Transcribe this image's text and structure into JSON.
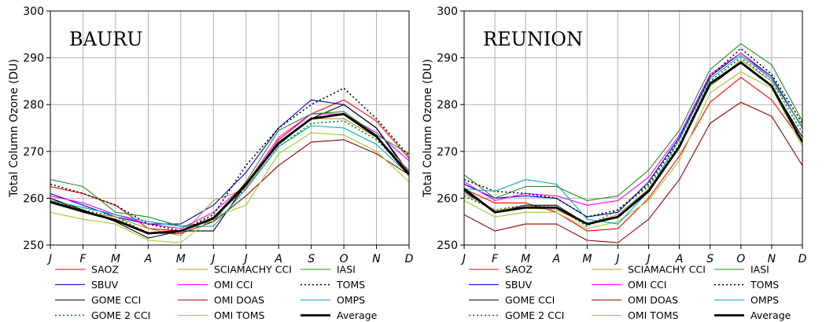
{
  "chart_data": [
    {
      "type": "line",
      "title": "BAURU",
      "ylabel": "Total Column Ozone (DU)",
      "xlabel": "",
      "categories": [
        "J",
        "F",
        "M",
        "A",
        "M",
        "J",
        "J",
        "A",
        "S",
        "O",
        "N",
        "D"
      ],
      "ylim": [
        250,
        300
      ],
      "yticks": [
        250,
        260,
        270,
        280,
        290,
        300
      ],
      "grid": true,
      "series": [
        {
          "name": "SAOZ",
          "color": "#ff0000",
          "style": "solid",
          "values": [
            262.5,
            261.0,
            258.5,
            253.5,
            253.0,
            255.5,
            262.5,
            272.5,
            278.0,
            281.0,
            276.5,
            268.5
          ]
        },
        {
          "name": "SBUV",
          "color": "#0000cc",
          "style": "solid",
          "values": [
            261.0,
            258.5,
            256.0,
            254.5,
            254.5,
            258.5,
            265.5,
            275.0,
            281.0,
            280.0,
            275.0,
            265.5
          ]
        },
        {
          "name": "GOME CCI",
          "color": "#000000",
          "style": "solid",
          "values": [
            260.0,
            257.5,
            255.0,
            251.5,
            253.0,
            253.0,
            263.0,
            271.5,
            277.0,
            280.0,
            275.0,
            265.0
          ]
        },
        {
          "name": "GOME 2 CCI",
          "color": "#007a00",
          "style": "dotted",
          "values": [
            259.5,
            257.5,
            256.0,
            252.5,
            253.0,
            256.0,
            262.0,
            271.0,
            276.0,
            276.5,
            272.5,
            265.5
          ]
        },
        {
          "name": "SCIAMACHY CCI",
          "color": "#b59a3a",
          "style": "solid",
          "values": [
            259.0,
            257.0,
            256.0,
            253.5,
            252.0,
            259.5,
            262.0,
            272.0,
            277.0,
            277.0,
            273.0,
            266.0
          ]
        },
        {
          "name": "OMI CCI",
          "color": "#ff00ff",
          "style": "solid",
          "values": [
            260.5,
            259.0,
            256.5,
            254.5,
            253.5,
            257.0,
            263.0,
            273.0,
            278.0,
            278.0,
            274.0,
            268.0
          ]
        },
        {
          "name": "OMI DOAS",
          "color": "#8b0000",
          "style": "solid",
          "values": [
            260.0,
            257.0,
            255.5,
            252.5,
            252.5,
            255.0,
            260.5,
            267.0,
            272.0,
            272.5,
            269.5,
            265.0
          ]
        },
        {
          "name": "OMI TOMS",
          "color": "#99cc33",
          "style": "solid",
          "values": [
            257.0,
            255.5,
            254.5,
            251.0,
            250.5,
            256.0,
            258.5,
            269.5,
            274.0,
            273.5,
            270.0,
            263.5
          ]
        },
        {
          "name": "IASI",
          "color": "#228b22",
          "style": "solid",
          "values": [
            264.0,
            262.5,
            257.0,
            256.0,
            254.0,
            255.0,
            263.5,
            274.5,
            278.0,
            278.5,
            273.5,
            269.5
          ]
        },
        {
          "name": "TOMS",
          "color": "#000000",
          "style": "dotted",
          "values": [
            263.0,
            261.0,
            258.5,
            254.5,
            253.0,
            256.5,
            267.0,
            275.0,
            280.0,
            283.5,
            277.0,
            269.0
          ]
        },
        {
          "name": "OMPS",
          "color": "#00aaaa",
          "style": "solid",
          "values": [
            259.5,
            258.0,
            256.5,
            255.0,
            254.0,
            254.0,
            262.0,
            271.0,
            275.5,
            275.0,
            271.5,
            265.0
          ]
        },
        {
          "name": "Average",
          "color": "#000000",
          "style": "bold",
          "values": [
            259.2,
            257.2,
            255.3,
            252.5,
            253.0,
            255.7,
            263.0,
            271.8,
            277.0,
            278.0,
            273.2,
            265.0
          ]
        }
      ]
    },
    {
      "type": "line",
      "title": "REUNION",
      "ylabel": "Total Column Ozone (DU)",
      "xlabel": "",
      "categories": [
        "J",
        "F",
        "M",
        "A",
        "M",
        "J",
        "J",
        "A",
        "S",
        "O",
        "N",
        "D"
      ],
      "ylim": [
        250,
        300
      ],
      "yticks": [
        250,
        260,
        270,
        280,
        290,
        300
      ],
      "grid": true,
      "series": [
        {
          "name": "SAOZ",
          "color": "#ff0000",
          "style": "solid",
          "values": [
            262.0,
            259.0,
            259.0,
            257.0,
            253.0,
            253.5,
            260.0,
            269.0,
            280.5,
            285.8,
            281.0,
            272.0
          ]
        },
        {
          "name": "SBUV",
          "color": "#0000cc",
          "style": "solid",
          "values": [
            263.0,
            260.0,
            260.5,
            260.0,
            256.0,
            257.0,
            263.5,
            273.0,
            286.0,
            291.0,
            286.0,
            275.0
          ]
        },
        {
          "name": "GOME CCI",
          "color": "#000000",
          "style": "solid",
          "values": [
            261.5,
            257.0,
            258.5,
            258.5,
            254.5,
            256.0,
            262.0,
            271.0,
            284.0,
            289.0,
            284.0,
            273.0
          ]
        },
        {
          "name": "GOME 2 CCI",
          "color": "#007a00",
          "style": "dotted",
          "values": [
            260.5,
            257.5,
            258.5,
            258.0,
            254.0,
            257.5,
            262.5,
            271.5,
            285.0,
            290.0,
            285.0,
            274.0
          ]
        },
        {
          "name": "SCIAMACHY CCI",
          "color": "#b59a3a",
          "style": "solid",
          "values": [
            261.0,
            257.5,
            258.0,
            257.5,
            254.5,
            256.5,
            262.0,
            271.0,
            284.0,
            289.5,
            285.0,
            275.5
          ]
        },
        {
          "name": "OMI CCI",
          "color": "#ff00ff",
          "style": "solid",
          "values": [
            263.5,
            259.5,
            261.0,
            260.5,
            258.5,
            259.5,
            264.5,
            273.5,
            286.5,
            291.0,
            285.5,
            275.0
          ]
        },
        {
          "name": "OMI DOAS",
          "color": "#8b0000",
          "style": "solid",
          "values": [
            256.5,
            253.0,
            254.5,
            254.5,
            251.0,
            250.5,
            255.5,
            264.0,
            276.0,
            280.5,
            277.5,
            267.0
          ]
        },
        {
          "name": "OMI TOMS",
          "color": "#99cc33",
          "style": "solid",
          "values": [
            259.5,
            256.0,
            257.0,
            257.0,
            253.5,
            255.0,
            259.5,
            268.0,
            282.5,
            287.0,
            283.5,
            271.0
          ]
        },
        {
          "name": "IASI",
          "color": "#228b22",
          "style": "solid",
          "values": [
            265.0,
            260.0,
            262.5,
            262.5,
            259.5,
            260.5,
            266.0,
            274.5,
            287.5,
            293.0,
            288.5,
            276.5
          ]
        },
        {
          "name": "TOMS",
          "color": "#000000",
          "style": "dotted",
          "values": [
            264.0,
            261.5,
            261.0,
            260.0,
            256.0,
            257.5,
            263.0,
            272.5,
            286.0,
            292.0,
            286.5,
            276.0
          ]
        },
        {
          "name": "OMPS",
          "color": "#00aaaa",
          "style": "solid",
          "values": [
            262.0,
            261.5,
            264.0,
            263.0,
            255.5,
            254.5,
            261.5,
            272.5,
            285.5,
            290.5,
            285.5,
            275.0
          ]
        },
        {
          "name": "Average",
          "color": "#000000",
          "style": "bold",
          "values": [
            262.0,
            257.0,
            258.0,
            258.0,
            254.5,
            256.0,
            261.5,
            271.0,
            284.5,
            289.0,
            284.0,
            272.0
          ]
        }
      ]
    }
  ],
  "legend": {
    "placement": "below",
    "items": [
      {
        "name": "SAOZ",
        "color": "#ff0000",
        "style": "solid"
      },
      {
        "name": "SBUV",
        "color": "#0000cc",
        "style": "solid"
      },
      {
        "name": "GOME CCI",
        "color": "#000000",
        "style": "solid"
      },
      {
        "name": "GOME 2 CCI",
        "color": "#007a00",
        "style": "dotted"
      },
      {
        "name": "SCIAMACHY CCI",
        "color": "#b59a3a",
        "style": "solid"
      },
      {
        "name": "OMI CCI",
        "color": "#ff00ff",
        "style": "solid"
      },
      {
        "name": "OMI DOAS",
        "color": "#8b0000",
        "style": "solid"
      },
      {
        "name": "OMI TOMS",
        "color": "#99cc33",
        "style": "solid"
      },
      {
        "name": "IASI",
        "color": "#228b22",
        "style": "solid"
      },
      {
        "name": "TOMS",
        "color": "#000000",
        "style": "dotted"
      },
      {
        "name": "OMPS",
        "color": "#00aaaa",
        "style": "solid"
      },
      {
        "name": "Average",
        "color": "#000000",
        "style": "bold"
      }
    ]
  }
}
